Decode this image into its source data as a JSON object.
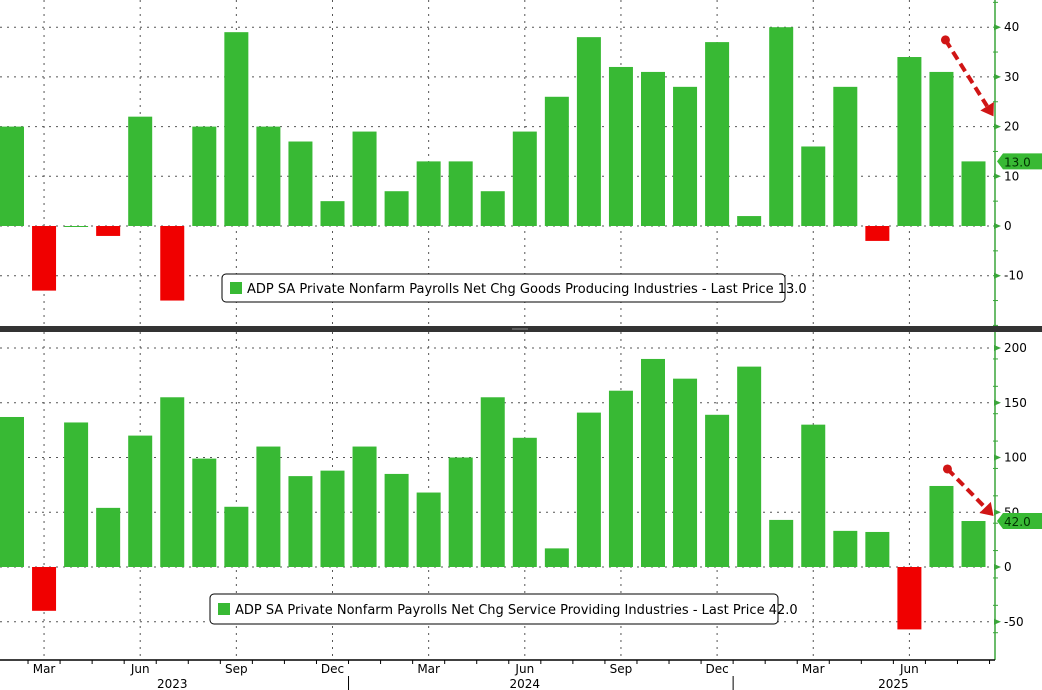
{
  "chart_data": [
    {
      "type": "bar",
      "title": "",
      "legend": "ADP SA Private Nonfarm Payrolls Net Chg Goods Producing Industries - Last Price 13.0",
      "legend_position": "bottom-center",
      "last_price_label": "13.0",
      "last_price": 13.0,
      "xlabel": "",
      "ylabel": "",
      "ylim": [
        -20,
        45
      ],
      "yticks": [
        -10,
        0,
        10,
        20,
        30,
        40
      ],
      "grid": true,
      "positive_color": "#38b934",
      "negative_color": "#f00000",
      "categories": [
        "Feb 2023",
        "Mar 2023",
        "Apr 2023",
        "May 2023",
        "Jun 2023",
        "Jul 2023",
        "Aug 2023",
        "Sep 2023",
        "Oct 2023",
        "Nov 2023",
        "Dec 2023",
        "Jan 2024",
        "Feb 2024",
        "Mar 2024",
        "Apr 2024",
        "May 2024",
        "Jun 2024",
        "Jul 2024",
        "Aug 2024",
        "Sep 2024",
        "Oct 2024",
        "Nov 2024",
        "Dec 2024",
        "Jan 2025",
        "Feb 2025",
        "Mar 2025",
        "Apr 2025",
        "May 2025",
        "Jun 2025",
        "Jul 2025",
        "Aug 2025"
      ],
      "values": [
        20,
        -13,
        0,
        -2,
        22,
        -15,
        20,
        39,
        20,
        17,
        5,
        19,
        7,
        13,
        13,
        7,
        19,
        26,
        38,
        32,
        31,
        28,
        37,
        2,
        40,
        16,
        28,
        -3,
        34,
        31,
        13
      ],
      "annotation": "red dashed arrow pointing down to latest bar"
    },
    {
      "type": "bar",
      "title": "",
      "legend": "ADP SA Private Nonfarm Payrolls Net Chg Service Providing Industries - Last Price 42.0",
      "legend_position": "bottom-center",
      "last_price_label": "42.0",
      "last_price": 42.0,
      "xlabel": "",
      "ylabel": "",
      "ylim": [
        -85,
        210
      ],
      "yticks": [
        -50,
        0,
        50,
        100,
        150,
        200
      ],
      "grid": true,
      "positive_color": "#38b934",
      "negative_color": "#f00000",
      "categories": [
        "Feb 2023",
        "Mar 2023",
        "Apr 2023",
        "May 2023",
        "Jun 2023",
        "Jul 2023",
        "Aug 2023",
        "Sep 2023",
        "Oct 2023",
        "Nov 2023",
        "Dec 2023",
        "Jan 2024",
        "Feb 2024",
        "Mar 2024",
        "Apr 2024",
        "May 2024",
        "Jun 2024",
        "Jul 2024",
        "Aug 2024",
        "Sep 2024",
        "Oct 2024",
        "Nov 2024",
        "Dec 2024",
        "Jan 2025",
        "Feb 2025",
        "Mar 2025",
        "Apr 2025",
        "May 2025",
        "Jun 2025",
        "Jul 2025",
        "Aug 2025"
      ],
      "values": [
        137,
        -40,
        132,
        54,
        120,
        155,
        99,
        55,
        110,
        83,
        88,
        110,
        85,
        68,
        100,
        155,
        118,
        17,
        141,
        161,
        190,
        172,
        139,
        183,
        43,
        130,
        33,
        32,
        -57,
        74,
        42
      ],
      "annotation": "red dashed arrow pointing down to latest bar"
    }
  ],
  "x_axis": {
    "month_labels": [
      {
        "label": "Mar",
        "index": 1
      },
      {
        "label": "Jun",
        "index": 4
      },
      {
        "label": "Sep",
        "index": 7
      },
      {
        "label": "Dec",
        "index": 10
      },
      {
        "label": "Mar",
        "index": 13
      },
      {
        "label": "Jun",
        "index": 16
      },
      {
        "label": "Sep",
        "index": 19
      },
      {
        "label": "Dec",
        "index": 22
      },
      {
        "label": "Mar",
        "index": 25
      },
      {
        "label": "Jun",
        "index": 28
      }
    ],
    "year_labels": [
      {
        "label": "2023",
        "index": 5
      },
      {
        "label": "2024",
        "index": 16
      },
      {
        "label": "2025",
        "index": 27.5
      }
    ],
    "year_dividers": [
      10.5,
      22.5
    ]
  }
}
